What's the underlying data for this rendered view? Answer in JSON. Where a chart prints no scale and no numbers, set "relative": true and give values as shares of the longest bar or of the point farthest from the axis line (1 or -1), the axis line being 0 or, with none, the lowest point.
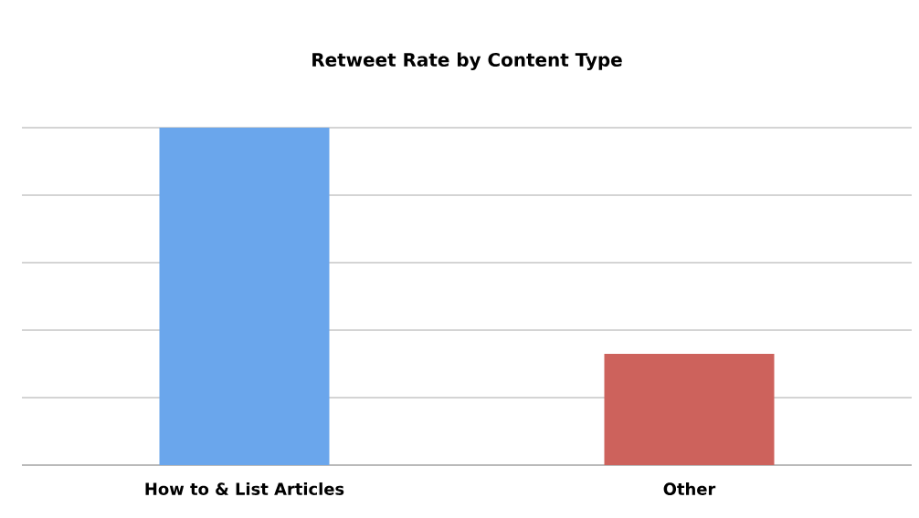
{
  "chart_data": {
    "type": "bar",
    "title": "**Retweet Rate by Content Type**",
    "categories": [
      "How to & List Articles",
      "Other"
    ],
    "values": [
      1,
      0.33
    ],
    "colors": [
      "#6aa6ec",
      "#cd625c"
    ],
    "relative": true,
    "grid": "y"
  }
}
